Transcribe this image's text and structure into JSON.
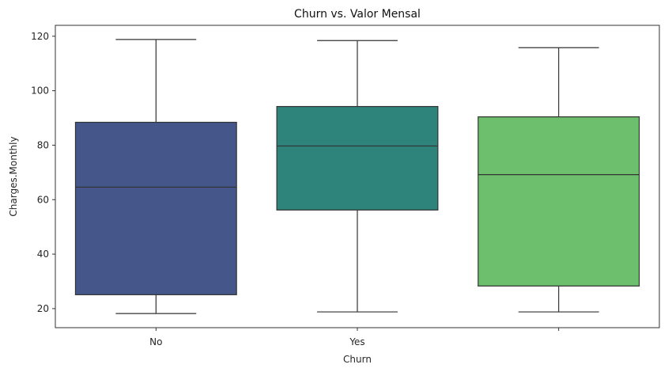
{
  "chart_data": {
    "type": "box",
    "title": "Churn vs. Valor Mensal",
    "xlabel": "Churn",
    "ylabel": "Charges.Monthly",
    "ylim": [
      13,
      124
    ],
    "yticks": [
      20,
      40,
      60,
      80,
      100,
      120
    ],
    "categories": [
      "No",
      "Yes",
      ""
    ],
    "boxes": [
      {
        "category": "No",
        "whisker_low": 18.2,
        "q1": 25.1,
        "median": 64.6,
        "q3": 88.4,
        "whisker_high": 118.8,
        "color": "#45578a"
      },
      {
        "category": "Yes",
        "whisker_low": 18.8,
        "q1": 56.2,
        "median": 79.7,
        "q3": 94.2,
        "whisker_high": 118.4,
        "color": "#2e847b"
      },
      {
        "category": "",
        "whisker_low": 18.8,
        "q1": 28.3,
        "median": 69.2,
        "q3": 90.4,
        "whisker_high": 115.8,
        "color": "#6dbe6d"
      }
    ],
    "grid": false,
    "legend": "none"
  }
}
